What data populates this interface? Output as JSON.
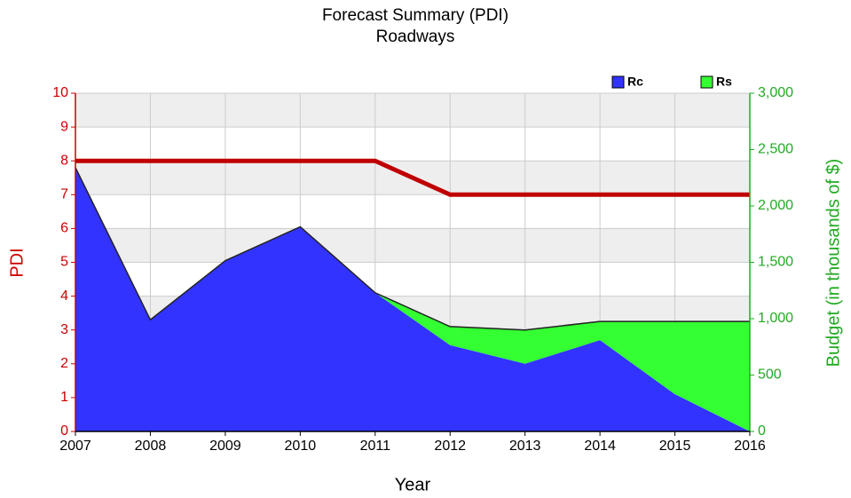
{
  "chart_data": {
    "type": "area",
    "title": "Forecast Summary (PDI)",
    "subtitle": "Roadways",
    "xlabel": "Year",
    "ylabel": "PDI",
    "y2label": "Budget (in thousands of $)",
    "x": [
      2007,
      2008,
      2009,
      2010,
      2011,
      2012,
      2013,
      2014,
      2015,
      2016
    ],
    "xlim": [
      2007,
      2016
    ],
    "xticks": [
      2007,
      2008,
      2009,
      2010,
      2011,
      2012,
      2013,
      2014,
      2015,
      2016
    ],
    "ylim": [
      0,
      10
    ],
    "yticks": [
      0,
      1,
      2,
      3,
      4,
      5,
      6,
      7,
      8,
      9,
      10
    ],
    "y2lim": [
      0,
      3000
    ],
    "y2ticks": [
      0,
      500,
      {
        "value": 1000,
        "label": "1,000"
      },
      {
        "value": 1500,
        "label": "1,500"
      },
      {
        "value": 2000,
        "label": "2,000"
      },
      {
        "value": 2500,
        "label": "2,500"
      },
      {
        "value": 3000,
        "label": "3,000"
      }
    ],
    "grid": true,
    "stacked": true,
    "legend": "top-right",
    "series": [
      {
        "name": "Rc",
        "color": "#3333ff",
        "axis": "y2",
        "type": "area",
        "values": [
          2340,
          990,
          1515,
          1815,
          1230,
          765,
          600,
          810,
          330,
          0
        ]
      },
      {
        "name": "Rs",
        "color": "#33ff33",
        "axis": "y2",
        "type": "area",
        "values": [
          0,
          0,
          0,
          0,
          0,
          165,
          300,
          165,
          645,
          975
        ]
      },
      {
        "name": "PDI",
        "color": "#c00000",
        "axis": "y",
        "type": "line",
        "values": [
          8,
          8,
          8,
          8,
          8,
          7,
          7,
          7,
          7,
          7
        ]
      }
    ]
  }
}
